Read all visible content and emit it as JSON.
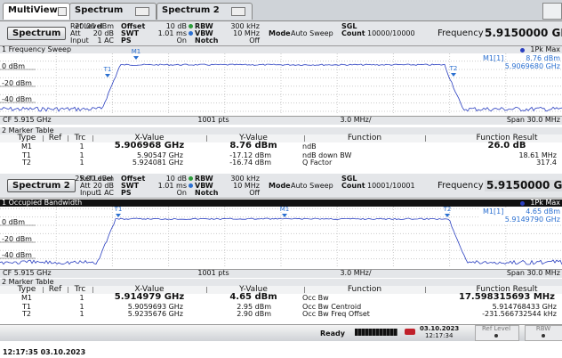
{
  "tabs": [
    "MultiView",
    "Spectrum",
    "Spectrum 2"
  ],
  "windows": [
    {
      "button": "Spectrum",
      "settings": {
        "ref_level": [
          "Ref Level",
          "20.00 dBm"
        ],
        "att": [
          "Att",
          "20 dB"
        ],
        "input": [
          "Input",
          "1 AC"
        ],
        "offset": [
          "Offset",
          "10 dB"
        ],
        "swt": [
          "SWT",
          "1.01 ms"
        ],
        "ps": [
          "PS",
          "On"
        ],
        "rbw": [
          "RBW",
          "300 kHz"
        ],
        "vbw": [
          "VBW",
          "10 MHz"
        ],
        "notch": [
          "Notch",
          "Off"
        ],
        "mode": [
          "Mode",
          "Auto Sweep"
        ],
        "sgl": "SGL",
        "count": [
          "Count",
          "10000/10000"
        ]
      },
      "frequency": [
        "Frequency",
        "5.9150000 GHz"
      ],
      "plot": {
        "title": "1 Frequency Sweep",
        "trace_label": "1Pk Max",
        "marker_readout": [
          "M1[1]",
          "8.76 dBm",
          "5.9069680 GHz"
        ],
        "y_labels": [
          "0 dBm",
          "-20 dBm",
          "-40 dBm"
        ],
        "markers": [
          "M1",
          "T1",
          "T2"
        ],
        "footer": [
          "CF 5.915 GHz",
          "1001 pts",
          "3.0 MHz/",
          "Span 30.0 MHz"
        ]
      },
      "table": {
        "title": "2 Marker Table",
        "headers": [
          "Type",
          "Ref",
          "Trc",
          "X-Value",
          "Y-Value",
          "Function",
          "Function Result"
        ],
        "rows": [
          [
            "M1",
            "1",
            "5.906968 GHz",
            "8.76 dBm",
            "ndB",
            "26.0 dB"
          ],
          [
            "T1",
            "1",
            "5.90547 GHz",
            "-17.12 dBm",
            "ndB down BW",
            "18.61 MHz"
          ],
          [
            "T2",
            "1",
            "5.924081 GHz",
            "-16.74 dBm",
            "Q Factor",
            "317.4"
          ]
        ]
      }
    },
    {
      "button": "Spectrum 2",
      "settings": {
        "ref_level": [
          "Ref Level",
          "25.00 dBm"
        ],
        "att": [
          "Att",
          "20 dB"
        ],
        "input": [
          "Input",
          "1 AC"
        ],
        "offset": [
          "Offset",
          "10 dB"
        ],
        "swt": [
          "SWT",
          "1.01 ms"
        ],
        "ps": [
          "PS",
          "On"
        ],
        "rbw": [
          "RBW",
          "300 kHz"
        ],
        "vbw": [
          "VBW",
          "10 MHz"
        ],
        "notch": [
          "Notch",
          "Off"
        ],
        "mode": [
          "Mode",
          "Auto Sweep"
        ],
        "sgl": "SGL",
        "count": [
          "Count",
          "10001/10001"
        ]
      },
      "frequency": [
        "Frequency",
        "5.9150000 GHz"
      ],
      "plot": {
        "title": "1 Occupied Bandwidth",
        "trace_label": "1Pk Max",
        "marker_readout": [
          "M1[1]",
          "4.65 dBm",
          "5.9149790 GHz"
        ],
        "y_labels": [
          "0 dBm",
          "-20 dBm",
          "-40 dBm"
        ],
        "markers": [
          "T1",
          "M1",
          "T2"
        ],
        "footer": [
          "CF 5.915 GHz",
          "1001 pts",
          "3.0 MHz/",
          "Span 30.0 MHz"
        ]
      },
      "table": {
        "title": "2 Marker Table",
        "headers": [
          "Type",
          "Ref",
          "Trc",
          "X-Value",
          "Y-Value",
          "Function",
          "Function Result"
        ],
        "rows": [
          [
            "M1",
            "1",
            "5.914979 GHz",
            "4.65 dBm",
            "Occ Bw",
            "17.598315693 MHz"
          ],
          [
            "T1",
            "1",
            "5.9059693 GHz",
            "2.95 dBm",
            "Occ Bw Centroid",
            "5.914768433 GHz"
          ],
          [
            "T2",
            "1",
            "5.9235676 GHz",
            "2.90 dBm",
            "Occ Bw Freq Offset",
            "-231.566732544 kHz"
          ]
        ]
      }
    }
  ],
  "status": {
    "state": "Ready",
    "date": "03.10.2023",
    "time": "12:17:34",
    "soft_keys": [
      "Ref Level",
      "RBW"
    ]
  },
  "timestamp": "12:17:35 03.10.2023"
}
